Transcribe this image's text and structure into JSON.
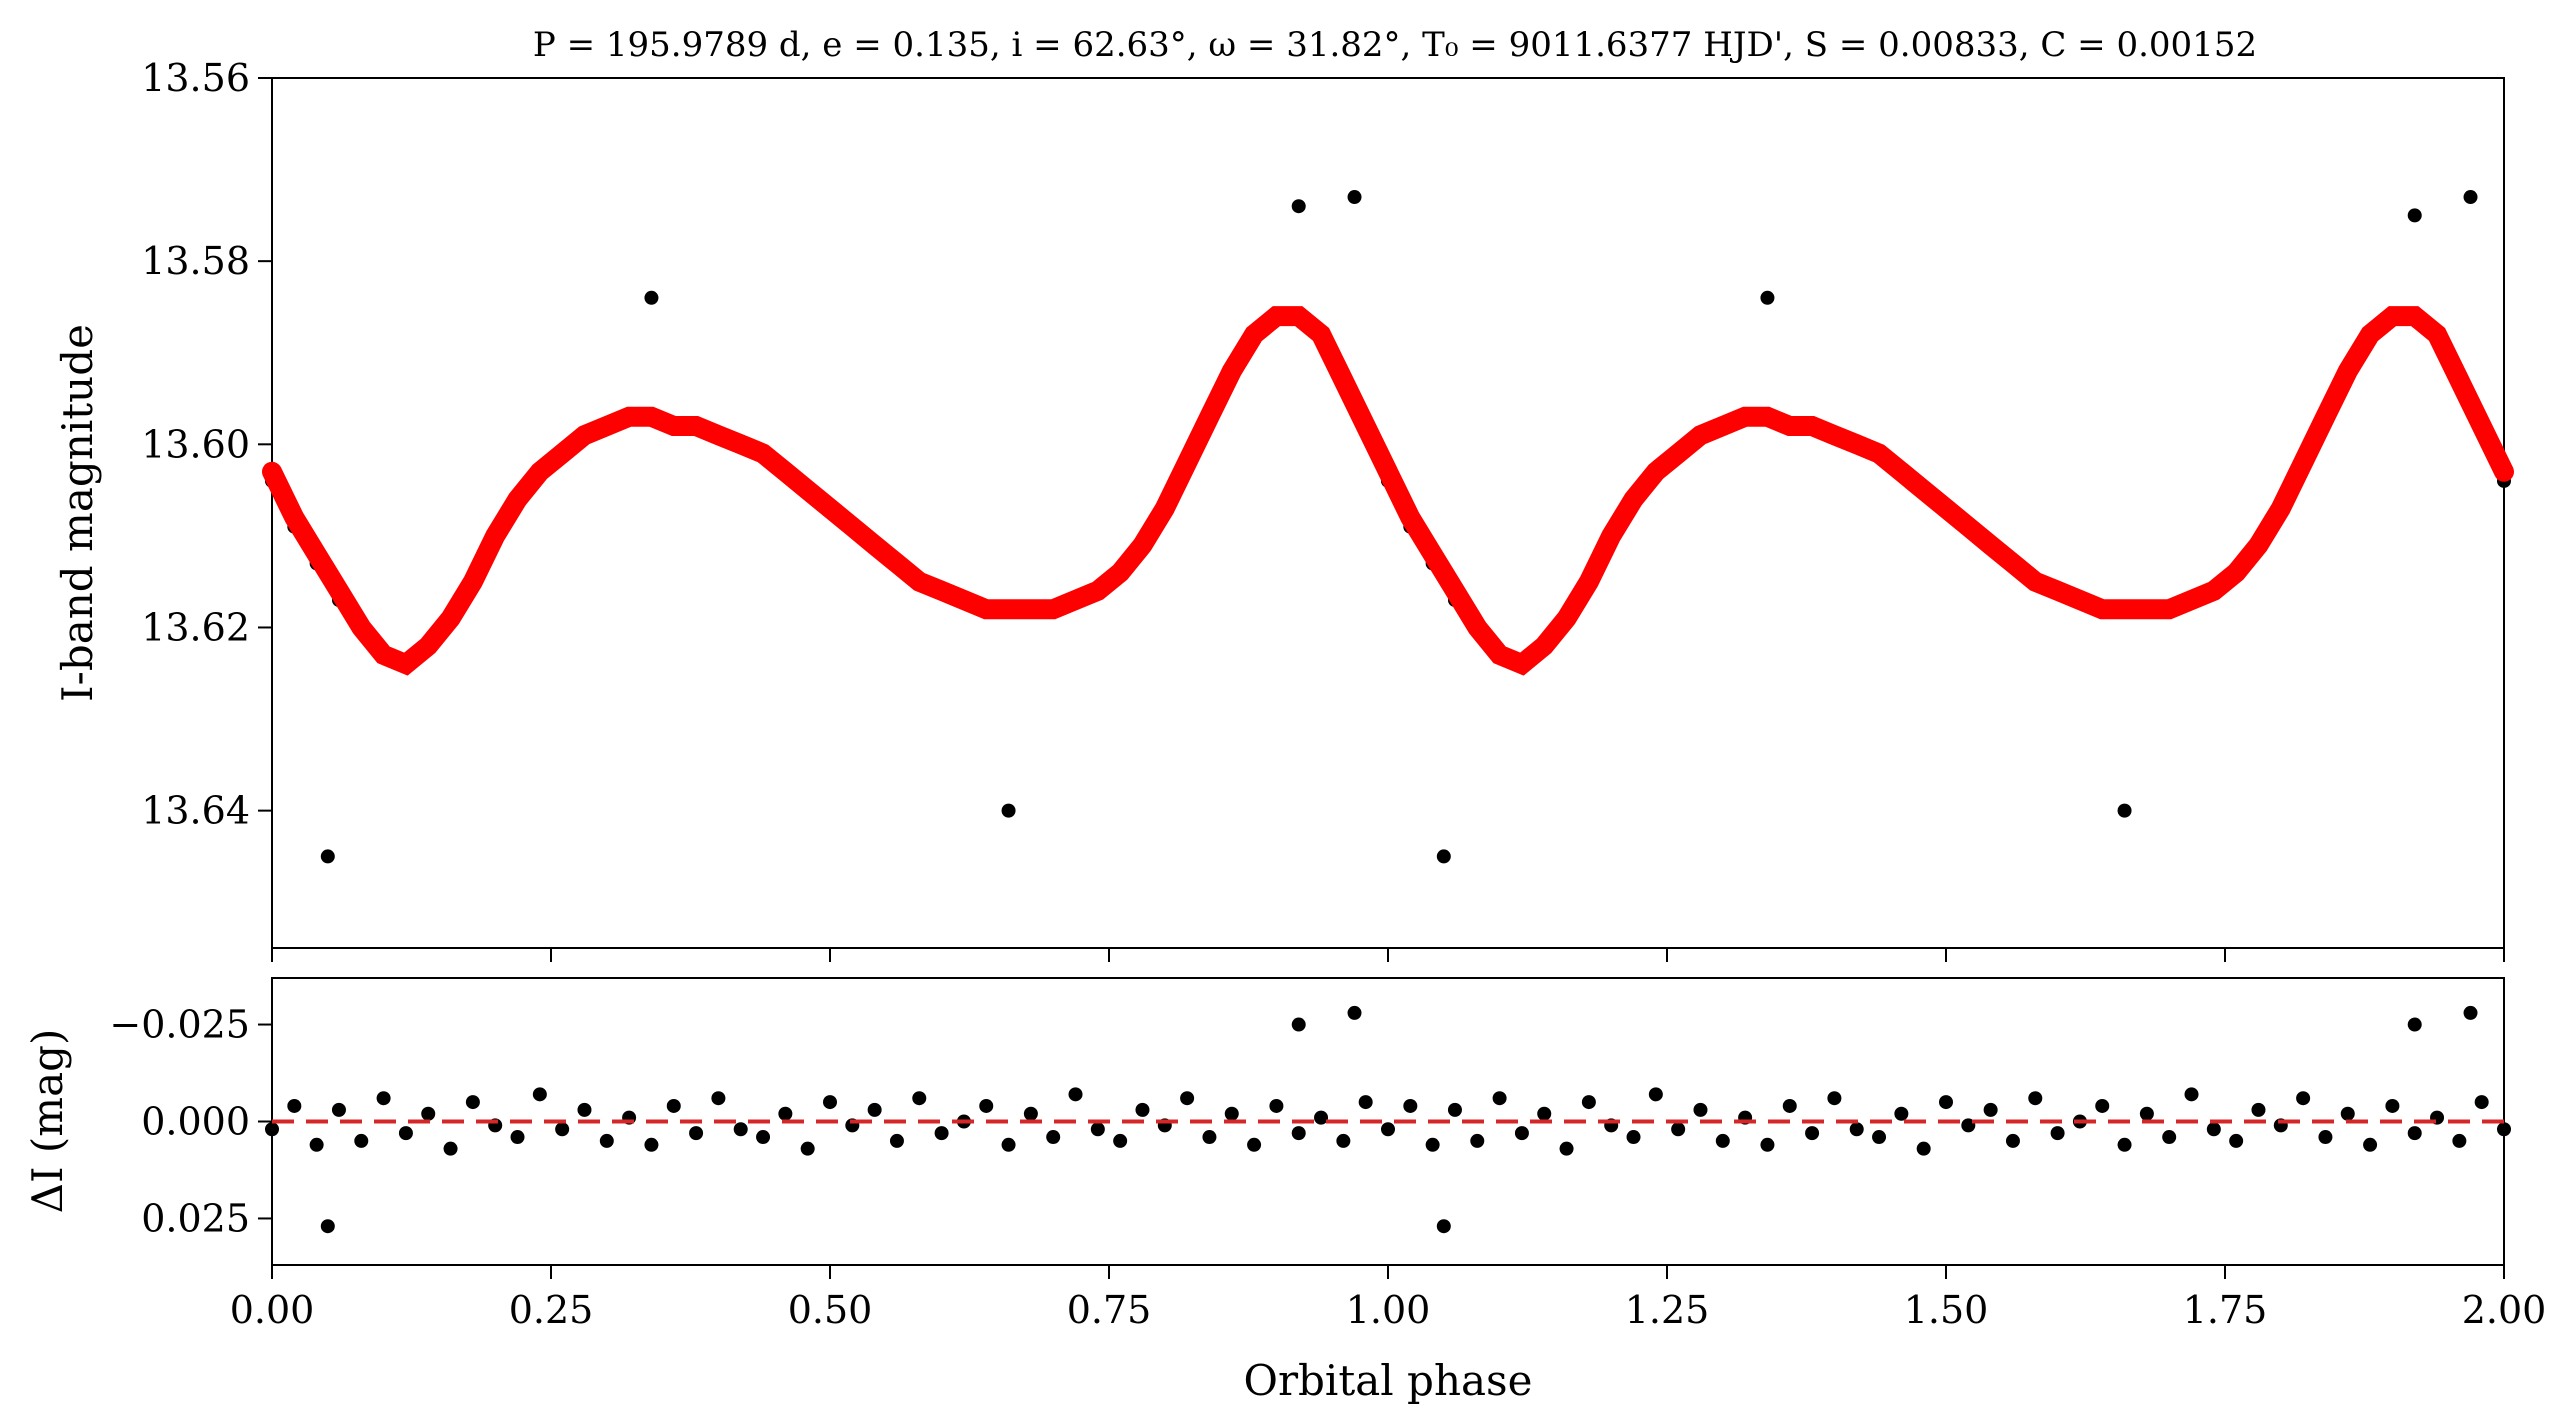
{
  "chart_data": {
    "type": "scatter",
    "title": "P = 195.9789 d, e = 0.135, i = 62.63°, ω = 31.82°, T₀ = 9011.6377 HJD', S = 0.00833, C = 0.00152",
    "xlabel": "Orbital phase",
    "xlim": [
      0,
      2
    ],
    "xticks": [
      "0.00",
      "0.25",
      "0.50",
      "0.75",
      "1.00",
      "1.25",
      "1.50",
      "1.75",
      "2.00"
    ],
    "panels": [
      {
        "id": "light-curve",
        "ylabel": "I-band magnitude",
        "ylim": [
          13.655,
          13.56
        ],
        "yinverted": true,
        "yticks": [
          "13.56",
          "13.58",
          "13.60",
          "13.62",
          "13.64"
        ],
        "series": [
          {
            "kind": "points",
            "color": "#000000",
            "x": [
              0.0,
              0.02,
              0.04,
              0.06,
              0.08,
              0.1,
              0.12,
              0.14,
              0.16,
              0.18,
              0.2,
              0.22,
              0.24,
              0.26,
              0.28,
              0.3,
              0.32,
              0.34,
              0.36,
              0.38,
              0.4,
              0.42,
              0.44,
              0.46,
              0.48,
              0.5,
              0.52,
              0.54,
              0.56,
              0.58,
              0.6,
              0.62,
              0.64,
              0.66,
              0.68,
              0.7,
              0.72,
              0.74,
              0.76,
              0.78,
              0.8,
              0.82,
              0.84,
              0.86,
              0.88,
              0.9,
              0.92,
              0.94,
              0.96,
              0.98,
              1.0,
              1.02,
              1.04,
              1.06,
              1.08,
              1.1,
              1.12,
              1.14,
              1.16,
              1.18,
              1.2,
              1.22,
              1.24,
              1.26,
              1.28,
              1.3,
              1.32,
              1.34,
              1.36,
              1.38,
              1.4,
              1.42,
              1.44,
              1.46,
              1.48,
              1.5,
              1.52,
              1.54,
              1.56,
              1.58,
              1.6,
              1.62,
              1.64,
              1.66,
              1.68,
              1.7,
              1.72,
              1.74,
              1.76,
              1.78,
              1.8,
              1.82,
              1.84,
              1.86,
              1.88,
              1.9,
              1.92,
              1.94,
              1.96,
              1.98,
              2.0,
              0.05,
              1.05,
              0.92,
              0.97,
              1.92,
              1.97,
              0.66,
              1.66,
              0.34,
              1.34
            ],
            "y": [
              13.604,
              13.609,
              13.613,
              13.617,
              13.62,
              13.623,
              13.624,
              13.622,
              13.619,
              13.615,
              13.61,
              13.606,
              13.603,
              13.601,
              13.599,
              13.598,
              13.597,
              13.597,
              13.598,
              13.598,
              13.599,
              13.6,
              13.601,
              13.603,
              13.605,
              13.607,
              13.609,
              13.611,
              13.613,
              13.615,
              13.616,
              13.617,
              13.618,
              13.618,
              13.618,
              13.618,
              13.617,
              13.616,
              13.614,
              13.611,
              13.607,
              13.602,
              13.597,
              13.592,
              13.588,
              13.586,
              13.586,
              13.588,
              13.593,
              13.598,
              13.604,
              13.609,
              13.613,
              13.617,
              13.62,
              13.623,
              13.624,
              13.622,
              13.619,
              13.615,
              13.61,
              13.606,
              13.603,
              13.601,
              13.599,
              13.598,
              13.597,
              13.597,
              13.598,
              13.598,
              13.599,
              13.6,
              13.601,
              13.603,
              13.605,
              13.607,
              13.609,
              13.611,
              13.613,
              13.615,
              13.616,
              13.617,
              13.618,
              13.618,
              13.618,
              13.618,
              13.617,
              13.616,
              13.614,
              13.611,
              13.607,
              13.602,
              13.597,
              13.592,
              13.588,
              13.586,
              13.586,
              13.588,
              13.593,
              13.598,
              13.604,
              13.645,
              13.645,
              13.574,
              13.573,
              13.575,
              13.573,
              13.64,
              13.64,
              13.584,
              13.584
            ]
          },
          {
            "kind": "model-line",
            "color": "#ff0000",
            "x": [
              0.0,
              0.02,
              0.04,
              0.06,
              0.08,
              0.1,
              0.12,
              0.14,
              0.16,
              0.18,
              0.2,
              0.22,
              0.24,
              0.26,
              0.28,
              0.3,
              0.32,
              0.34,
              0.36,
              0.38,
              0.4,
              0.42,
              0.44,
              0.46,
              0.48,
              0.5,
              0.52,
              0.54,
              0.56,
              0.58,
              0.6,
              0.62,
              0.64,
              0.66,
              0.68,
              0.7,
              0.72,
              0.74,
              0.76,
              0.78,
              0.8,
              0.82,
              0.84,
              0.86,
              0.88,
              0.9,
              0.92,
              0.94,
              0.96,
              0.98,
              1.0,
              1.02,
              1.04,
              1.06,
              1.08,
              1.1,
              1.12,
              1.14,
              1.16,
              1.18,
              1.2,
              1.22,
              1.24,
              1.26,
              1.28,
              1.3,
              1.32,
              1.34,
              1.36,
              1.38,
              1.4,
              1.42,
              1.44,
              1.46,
              1.48,
              1.5,
              1.52,
              1.54,
              1.56,
              1.58,
              1.6,
              1.62,
              1.64,
              1.66,
              1.68,
              1.7,
              1.72,
              1.74,
              1.76,
              1.78,
              1.8,
              1.82,
              1.84,
              1.86,
              1.88,
              1.9,
              1.92,
              1.94,
              1.96,
              1.98,
              2.0
            ],
            "y": [
              13.603,
              13.608,
              13.612,
              13.616,
              13.62,
              13.623,
              13.624,
              13.622,
              13.619,
              13.615,
              13.61,
              13.606,
              13.603,
              13.601,
              13.599,
              13.598,
              13.597,
              13.597,
              13.598,
              13.598,
              13.599,
              13.6,
              13.601,
              13.603,
              13.605,
              13.607,
              13.609,
              13.611,
              13.613,
              13.615,
              13.616,
              13.617,
              13.618,
              13.618,
              13.618,
              13.618,
              13.617,
              13.616,
              13.614,
              13.611,
              13.607,
              13.602,
              13.597,
              13.592,
              13.588,
              13.586,
              13.586,
              13.588,
              13.593,
              13.598,
              13.603,
              13.608,
              13.612,
              13.616,
              13.62,
              13.623,
              13.624,
              13.622,
              13.619,
              13.615,
              13.61,
              13.606,
              13.603,
              13.601,
              13.599,
              13.598,
              13.597,
              13.597,
              13.598,
              13.598,
              13.599,
              13.6,
              13.601,
              13.603,
              13.605,
              13.607,
              13.609,
              13.611,
              13.613,
              13.615,
              13.616,
              13.617,
              13.618,
              13.618,
              13.618,
              13.618,
              13.617,
              13.616,
              13.614,
              13.611,
              13.607,
              13.602,
              13.597,
              13.592,
              13.588,
              13.586,
              13.586,
              13.588,
              13.593,
              13.598,
              13.603
            ]
          }
        ]
      },
      {
        "id": "residuals",
        "ylabel": "ΔI (mag)",
        "ylim": [
          0.037,
          -0.037
        ],
        "yinverted": true,
        "yticks": [
          "−0.025",
          "0.000",
          "0.025"
        ],
        "series": [
          {
            "kind": "points",
            "color": "#000000",
            "x": [
              0.0,
              0.02,
              0.04,
              0.06,
              0.08,
              0.1,
              0.12,
              0.14,
              0.16,
              0.18,
              0.2,
              0.22,
              0.24,
              0.26,
              0.28,
              0.3,
              0.32,
              0.34,
              0.36,
              0.38,
              0.4,
              0.42,
              0.44,
              0.46,
              0.48,
              0.5,
              0.52,
              0.54,
              0.56,
              0.58,
              0.6,
              0.62,
              0.64,
              0.66,
              0.68,
              0.7,
              0.72,
              0.74,
              0.76,
              0.78,
              0.8,
              0.82,
              0.84,
              0.86,
              0.88,
              0.9,
              0.92,
              0.94,
              0.96,
              0.98,
              1.0,
              1.02,
              1.04,
              1.06,
              1.08,
              1.1,
              1.12,
              1.14,
              1.16,
              1.18,
              1.2,
              1.22,
              1.24,
              1.26,
              1.28,
              1.3,
              1.32,
              1.34,
              1.36,
              1.38,
              1.4,
              1.42,
              1.44,
              1.46,
              1.48,
              1.5,
              1.52,
              1.54,
              1.56,
              1.58,
              1.6,
              1.62,
              1.64,
              1.66,
              1.68,
              1.7,
              1.72,
              1.74,
              1.76,
              1.78,
              1.8,
              1.82,
              1.84,
              1.86,
              1.88,
              1.9,
              1.92,
              1.94,
              1.96,
              1.98,
              2.0,
              0.05,
              1.05,
              0.92,
              0.97,
              1.92,
              1.97
            ],
            "y": [
              0.002,
              -0.004,
              0.006,
              -0.003,
              0.005,
              -0.006,
              0.003,
              -0.002,
              0.007,
              -0.005,
              0.001,
              0.004,
              -0.007,
              0.002,
              -0.003,
              0.005,
              -0.001,
              0.006,
              -0.004,
              0.003,
              -0.006,
              0.002,
              0.004,
              -0.002,
              0.007,
              -0.005,
              0.001,
              -0.003,
              0.005,
              -0.006,
              0.003,
              0.0,
              -0.004,
              0.006,
              -0.002,
              0.004,
              -0.007,
              0.002,
              0.005,
              -0.003,
              0.001,
              -0.006,
              0.004,
              -0.002,
              0.006,
              -0.004,
              0.003,
              -0.001,
              0.005,
              -0.005,
              0.002,
              -0.004,
              0.006,
              -0.003,
              0.005,
              -0.006,
              0.003,
              -0.002,
              0.007,
              -0.005,
              0.001,
              0.004,
              -0.007,
              0.002,
              -0.003,
              0.005,
              -0.001,
              0.006,
              -0.004,
              0.003,
              -0.006,
              0.002,
              0.004,
              -0.002,
              0.007,
              -0.005,
              0.001,
              -0.003,
              0.005,
              -0.006,
              0.003,
              0.0,
              -0.004,
              0.006,
              -0.002,
              0.004,
              -0.007,
              0.002,
              0.005,
              -0.003,
              0.001,
              -0.006,
              0.004,
              -0.002,
              0.006,
              -0.004,
              0.003,
              -0.001,
              0.005,
              -0.005,
              0.002,
              0.027,
              0.027,
              -0.025,
              -0.028,
              -0.025,
              -0.028
            ]
          },
          {
            "kind": "zero-line",
            "color": "#d62728",
            "y0": 0.0
          }
        ]
      }
    ],
    "grid": false,
    "legend": "none"
  }
}
